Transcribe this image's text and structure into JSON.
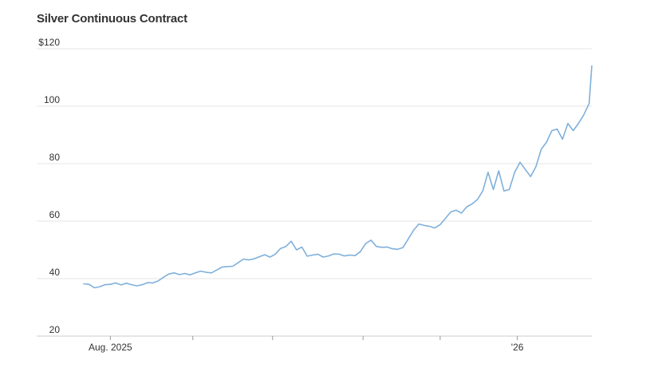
{
  "chart_data": {
    "type": "line",
    "title": "Silver Continuous Contract",
    "y_axis": {
      "ylim": [
        20,
        120
      ],
      "ticks": [
        20,
        40,
        60,
        80,
        100,
        120
      ],
      "tick_labels": [
        "20",
        "40",
        "60",
        "80",
        "100",
        "$120"
      ],
      "grid": true
    },
    "x_axis": {
      "range": [
        "2025-07-22",
        "2026-01-29"
      ],
      "ticks": [
        "2025-08-01",
        "2025-09-01",
        "2025-10-01",
        "2025-11-04",
        "2025-12-03",
        "2026-01-01"
      ],
      "tick_labels": [
        "Aug. 2025",
        "",
        "",
        "",
        "",
        "'26"
      ]
    },
    "colors": {
      "series": "#7fb0db"
    },
    "series": [
      {
        "x": [
          "2025-07-22",
          "2025-07-24",
          "2025-07-26",
          "2025-07-28",
          "2025-07-30",
          "2025-08-01",
          "2025-08-03",
          "2025-08-05",
          "2025-08-07",
          "2025-08-09",
          "2025-08-11",
          "2025-08-13",
          "2025-08-15",
          "2025-08-17",
          "2025-08-19",
          "2025-08-21",
          "2025-08-23",
          "2025-08-25",
          "2025-08-27",
          "2025-08-29",
          "2025-08-31",
          "2025-09-02",
          "2025-09-04",
          "2025-09-06",
          "2025-09-08",
          "2025-09-10",
          "2025-09-12",
          "2025-09-14",
          "2025-09-16",
          "2025-09-18",
          "2025-09-20",
          "2025-09-22",
          "2025-09-24",
          "2025-09-26",
          "2025-09-28",
          "2025-09-30",
          "2025-10-02",
          "2025-10-04",
          "2025-10-06",
          "2025-10-08",
          "2025-10-10",
          "2025-10-12",
          "2025-10-14",
          "2025-10-16",
          "2025-10-18",
          "2025-10-20",
          "2025-10-22",
          "2025-10-24",
          "2025-10-26",
          "2025-10-28",
          "2025-10-30",
          "2025-11-01",
          "2025-11-03",
          "2025-11-05",
          "2025-11-07",
          "2025-11-09",
          "2025-11-11",
          "2025-11-13",
          "2025-11-15",
          "2025-11-17",
          "2025-11-19",
          "2025-11-21",
          "2025-11-23",
          "2025-11-25",
          "2025-11-27",
          "2025-11-29",
          "2025-12-01",
          "2025-12-03",
          "2025-12-05",
          "2025-12-07",
          "2025-12-09",
          "2025-12-11",
          "2025-12-13",
          "2025-12-15",
          "2025-12-17",
          "2025-12-19",
          "2025-12-21",
          "2025-12-23",
          "2025-12-25",
          "2025-12-27",
          "2025-12-29",
          "2025-12-31",
          "2026-01-02",
          "2026-01-04",
          "2026-01-06",
          "2026-01-08",
          "2026-01-10",
          "2026-01-12",
          "2026-01-14",
          "2026-01-16",
          "2026-01-18",
          "2026-01-20",
          "2026-01-22",
          "2026-01-24",
          "2026-01-26",
          "2026-01-28",
          "2026-01-29"
        ],
        "values": [
          38.2,
          38.0,
          36.8,
          37.2,
          37.9,
          38.0,
          38.5,
          37.8,
          38.4,
          37.9,
          37.5,
          37.9,
          38.6,
          38.5,
          39.2,
          40.5,
          41.6,
          42.0,
          41.4,
          41.8,
          41.3,
          42.0,
          42.6,
          42.2,
          42.0,
          43.0,
          44.0,
          44.2,
          44.3,
          45.5,
          46.8,
          46.5,
          46.9,
          47.6,
          48.3,
          47.5,
          48.5,
          50.5,
          51.2,
          53.0,
          50.0,
          51.0,
          47.8,
          48.2,
          48.5,
          47.5,
          47.9,
          48.6,
          48.5,
          47.9,
          48.2,
          48.0,
          49.4,
          52.2,
          53.4,
          51.2,
          50.9,
          51.0,
          50.4,
          50.2,
          50.8,
          53.8,
          56.8,
          59.0,
          58.5,
          58.2,
          57.6,
          58.8,
          61.0,
          63.2,
          63.8,
          62.8,
          65.0,
          66.0,
          67.5,
          70.5,
          77.0,
          71.0,
          77.5,
          70.5,
          71.0,
          77.0,
          80.5,
          78.0,
          75.5,
          79.0,
          85.0,
          87.5,
          91.5,
          92.0,
          88.5,
          94.0,
          91.5,
          94.0,
          97.0,
          101.0,
          114.0
        ]
      }
    ]
  }
}
